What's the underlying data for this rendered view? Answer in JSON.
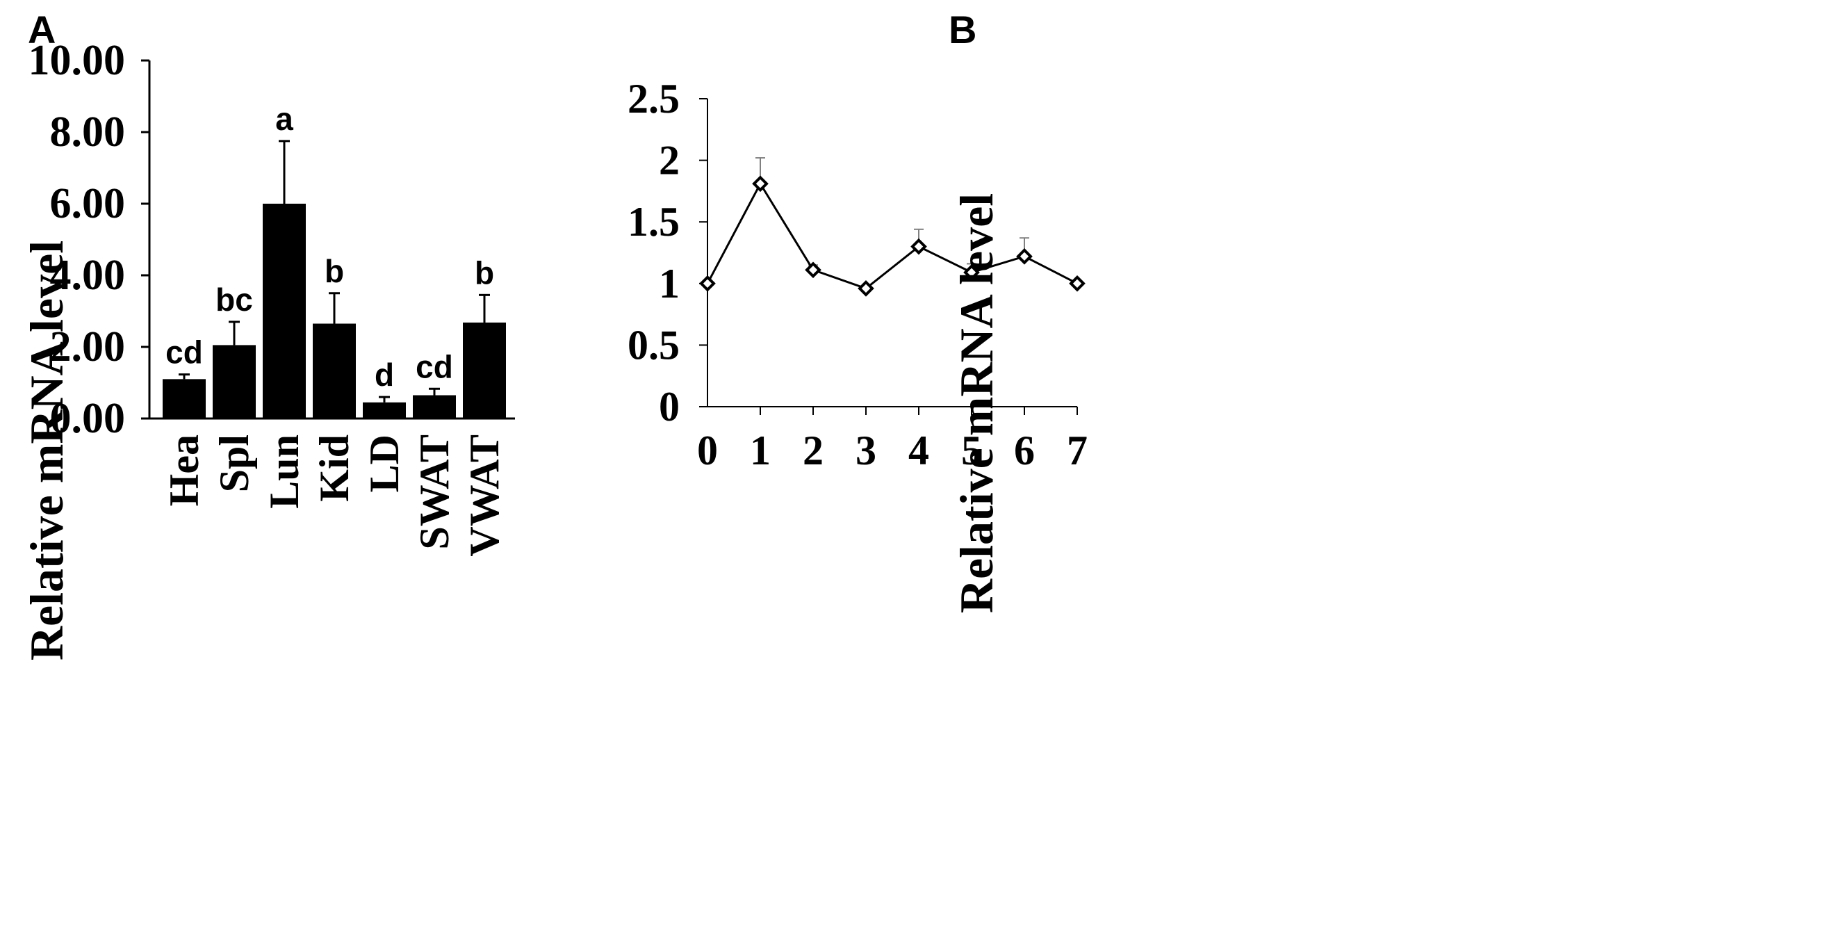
{
  "chart_data": [
    {
      "panel": "A",
      "type": "bar",
      "ylabel": "Relative mRNA level",
      "ylim": [
        0,
        10
      ],
      "yticks": [
        "0.00",
        "2.00",
        "4.00",
        "6.00",
        "8.00",
        "10.00"
      ],
      "categories": [
        "Hea",
        "Spl",
        "Lun",
        "Kid",
        "LD",
        "SWAT",
        "VWAT"
      ],
      "values": [
        1.1,
        2.05,
        6.0,
        2.65,
        0.45,
        0.65,
        2.68
      ],
      "error": [
        0.13,
        0.65,
        1.75,
        0.85,
        0.15,
        0.18,
        0.77
      ],
      "letters": [
        "cd",
        "bc",
        "a",
        "b",
        "d",
        "cd",
        "b"
      ],
      "colors": {
        "bar": "#000000"
      }
    },
    {
      "panel": "B",
      "type": "line",
      "ylabel": "Relative mRNA level",
      "ylim": [
        0,
        2.5
      ],
      "yticks": [
        "0",
        "0.5",
        "1",
        "1.5",
        "2",
        "2.5"
      ],
      "x": [
        "0",
        "1",
        "2",
        "3",
        "4",
        "5",
        "6",
        "7"
      ],
      "values": [
        1.0,
        1.81,
        1.11,
        0.96,
        1.3,
        1.09,
        1.22,
        1.0
      ],
      "error": [
        0,
        0.21,
        0.04,
        0,
        0.14,
        0.07,
        0.15,
        0
      ],
      "colors": {
        "line": "#000000",
        "errorbar": "#808080"
      }
    }
  ]
}
